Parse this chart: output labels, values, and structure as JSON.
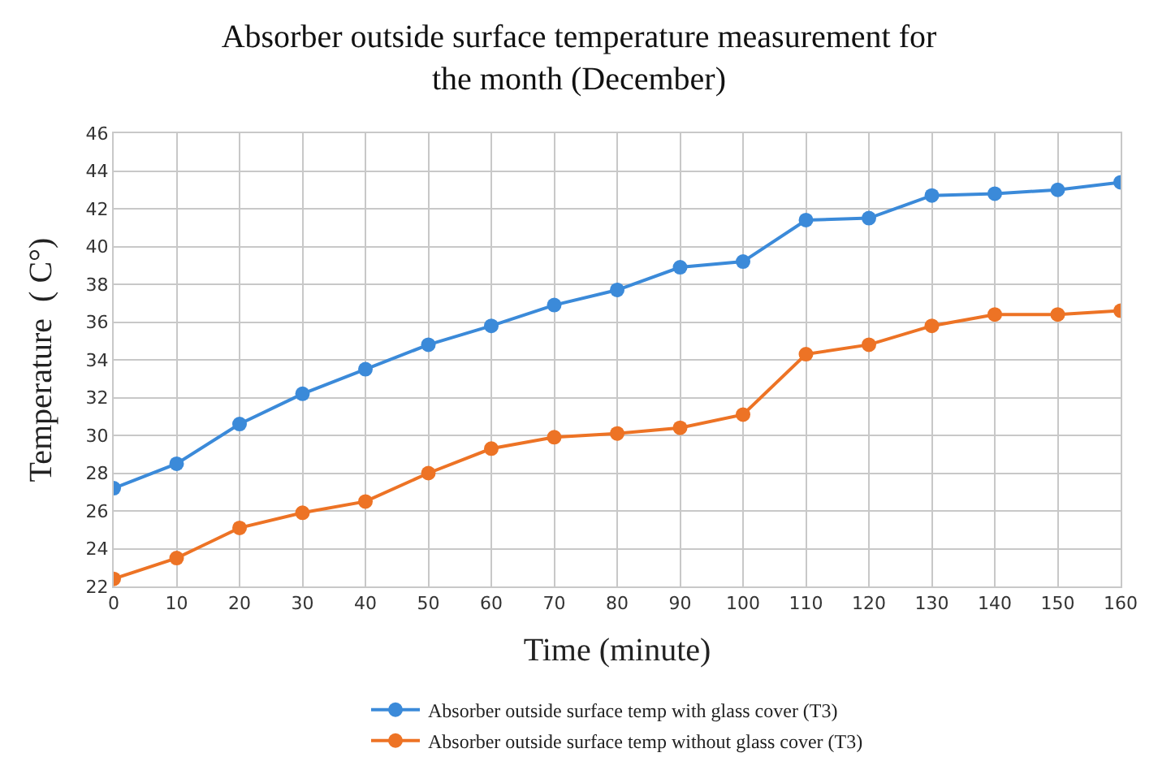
{
  "chart_data": {
    "type": "line",
    "title": "Absorber outside surface temperature measurement for\nthe month (December)",
    "xlabel": "Time (minute)",
    "ylabel": "Temperature  ( C°)",
    "x": [
      0,
      10,
      20,
      30,
      40,
      50,
      60,
      70,
      80,
      90,
      100,
      110,
      120,
      130,
      140,
      150,
      160
    ],
    "series": [
      {
        "name": "Absorber outside surface temp with glass cover (T3)",
        "color": "#3b8ad9",
        "values": [
          27.2,
          28.5,
          30.6,
          32.2,
          33.5,
          34.8,
          35.8,
          36.9,
          37.7,
          38.9,
          39.2,
          41.4,
          41.5,
          42.7,
          42.8,
          43.0,
          43.4
        ]
      },
      {
        "name": "Absorber outside surface temp without glass cover (T3)",
        "color": "#ed7325",
        "values": [
          22.4,
          23.5,
          25.1,
          25.9,
          26.5,
          28.0,
          29.3,
          29.9,
          30.1,
          30.4,
          31.1,
          34.3,
          34.8,
          35.8,
          36.4,
          36.4,
          36.6
        ]
      }
    ],
    "xlim": [
      0,
      160
    ],
    "xticks": [
      0,
      10,
      20,
      30,
      40,
      50,
      60,
      70,
      80,
      90,
      100,
      110,
      120,
      130,
      140,
      150,
      160
    ],
    "ylim": [
      22,
      46
    ],
    "yticks": [
      22,
      24,
      26,
      28,
      30,
      32,
      34,
      36,
      38,
      40,
      42,
      44,
      46
    ],
    "grid": true,
    "legend": "bottom",
    "marker": "circle",
    "line_style": "solid"
  }
}
